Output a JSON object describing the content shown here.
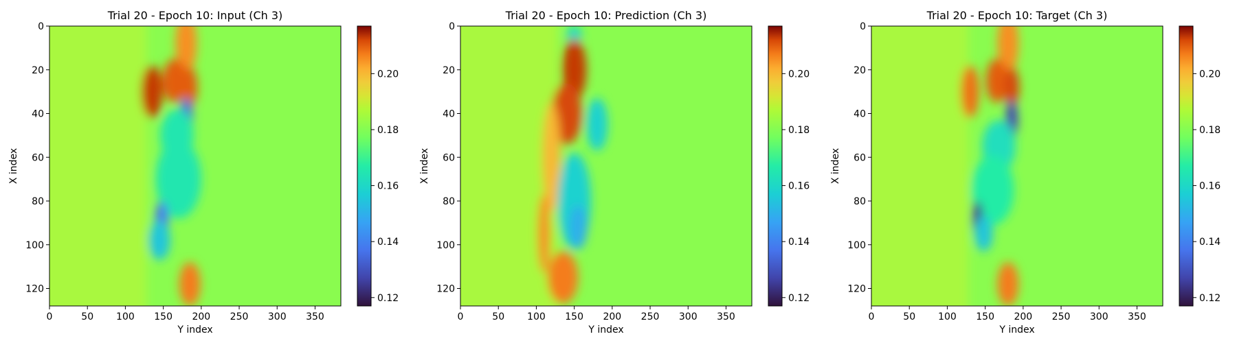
{
  "chart_data": [
    {
      "type": "heatmap",
      "title": "Trial 20 - Epoch 10: Input (Ch 3)",
      "xlabel": "Y index",
      "ylabel": "X index",
      "xlim": [
        0,
        384
      ],
      "ylim": [
        128,
        0
      ],
      "xticks": [
        "0",
        "50",
        "100",
        "150",
        "200",
        "250",
        "300",
        "350"
      ],
      "yticks": [
        "0",
        "20",
        "40",
        "60",
        "80",
        "100",
        "120"
      ],
      "colorbar": {
        "min": 0.117,
        "max": 0.217,
        "ticks": [
          "0.12",
          "0.14",
          "0.16",
          "0.18",
          "0.20"
        ]
      },
      "colormap": "turbo",
      "features": [
        {
          "cy": 180,
          "cx": 8,
          "rx": 14,
          "ry": 14,
          "v": 0.205
        },
        {
          "cy": 165,
          "cx": 25,
          "rx": 16,
          "ry": 10,
          "v": 0.21
        },
        {
          "cy": 135,
          "cx": 30,
          "rx": 14,
          "ry": 12,
          "v": 0.213
        },
        {
          "cy": 185,
          "cx": 28,
          "rx": 10,
          "ry": 9,
          "v": 0.21
        },
        {
          "cy": 180,
          "cx": 42,
          "rx": 9,
          "ry": 9,
          "v": 0.135
        },
        {
          "cy": 168,
          "cx": 50,
          "rx": 22,
          "ry": 12,
          "v": 0.165
        },
        {
          "cy": 170,
          "cx": 70,
          "rx": 30,
          "ry": 18,
          "v": 0.165
        },
        {
          "cy": 148,
          "cx": 90,
          "rx": 9,
          "ry": 10,
          "v": 0.138
        },
        {
          "cy": 145,
          "cx": 98,
          "rx": 14,
          "ry": 9,
          "v": 0.155
        },
        {
          "cy": 185,
          "cx": 118,
          "rx": 14,
          "ry": 10,
          "v": 0.207
        }
      ]
    },
    {
      "type": "heatmap",
      "title": "Trial 20 - Epoch 10: Prediction (Ch 3)",
      "xlabel": "Y index",
      "ylabel": "X index",
      "xlim": [
        0,
        384
      ],
      "ylim": [
        128,
        0
      ],
      "xticks": [
        "0",
        "50",
        "100",
        "150",
        "200",
        "250",
        "300",
        "350"
      ],
      "yticks": [
        "0",
        "20",
        "40",
        "60",
        "80",
        "100",
        "120"
      ],
      "colorbar": {
        "min": 0.117,
        "max": 0.217,
        "ticks": [
          "0.12",
          "0.14",
          "0.16",
          "0.18",
          "0.20"
        ]
      },
      "colormap": "turbo",
      "features": [
        {
          "cy": 150,
          "cx": 4,
          "rx": 10,
          "ry": 4,
          "v": 0.16
        },
        {
          "cy": 150,
          "cx": 20,
          "rx": 16,
          "ry": 14,
          "v": 0.213
        },
        {
          "cy": 140,
          "cx": 40,
          "rx": 20,
          "ry": 14,
          "v": 0.212
        },
        {
          "cy": 120,
          "cx": 60,
          "rx": 12,
          "ry": 25,
          "v": 0.2
        },
        {
          "cy": 180,
          "cx": 45,
          "rx": 14,
          "ry": 12,
          "v": 0.158
        },
        {
          "cy": 150,
          "cx": 80,
          "rx": 22,
          "ry": 22,
          "v": 0.158
        },
        {
          "cy": 155,
          "cx": 92,
          "rx": 12,
          "ry": 10,
          "v": 0.15
        },
        {
          "cy": 135,
          "cx": 115,
          "rx": 20,
          "ry": 12,
          "v": 0.207
        },
        {
          "cy": 110,
          "cx": 95,
          "rx": 8,
          "ry": 18,
          "v": 0.205
        }
      ]
    },
    {
      "type": "heatmap",
      "title": "Trial 20 - Epoch 10: Target (Ch 3)",
      "xlabel": "Y index",
      "ylabel": "X index",
      "xlim": [
        0,
        384
      ],
      "ylim": [
        128,
        0
      ],
      "xticks": [
        "0",
        "50",
        "100",
        "150",
        "200",
        "250",
        "300",
        "350"
      ],
      "yticks": [
        "0",
        "20",
        "40",
        "60",
        "80",
        "100",
        "120"
      ],
      "colorbar": {
        "min": 0.117,
        "max": 0.217,
        "ticks": [
          "0.12",
          "0.14",
          "0.16",
          "0.18",
          "0.20"
        ]
      },
      "colormap": "turbo",
      "features": [
        {
          "cy": 180,
          "cx": 8,
          "rx": 14,
          "ry": 14,
          "v": 0.205
        },
        {
          "cy": 165,
          "cx": 25,
          "rx": 14,
          "ry": 10,
          "v": 0.21
        },
        {
          "cy": 130,
          "cx": 30,
          "rx": 12,
          "ry": 12,
          "v": 0.208
        },
        {
          "cy": 185,
          "cx": 28,
          "rx": 10,
          "ry": 9,
          "v": 0.212
        },
        {
          "cy": 185,
          "cx": 43,
          "rx": 8,
          "ry": 9,
          "v": 0.128
        },
        {
          "cy": 168,
          "cx": 55,
          "rx": 22,
          "ry": 12,
          "v": 0.162
        },
        {
          "cy": 160,
          "cx": 75,
          "rx": 28,
          "ry": 16,
          "v": 0.167
        },
        {
          "cy": 140,
          "cx": 88,
          "rx": 7,
          "ry": 8,
          "v": 0.125
        },
        {
          "cy": 148,
          "cx": 95,
          "rx": 12,
          "ry": 8,
          "v": 0.155
        },
        {
          "cy": 180,
          "cx": 118,
          "rx": 14,
          "ry": 10,
          "v": 0.207
        }
      ]
    }
  ]
}
